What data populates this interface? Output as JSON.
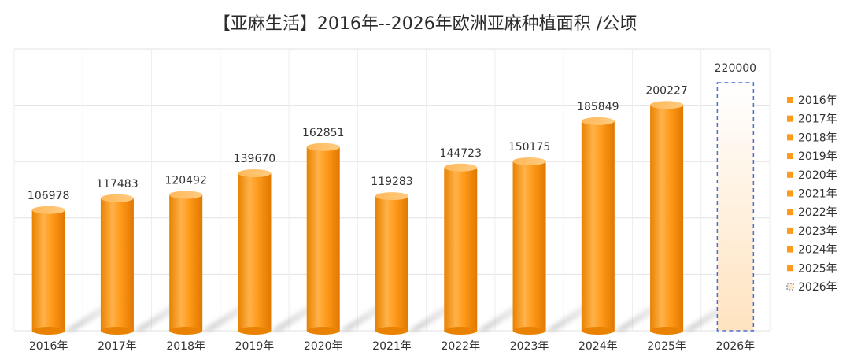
{
  "chart_data": {
    "type": "bar",
    "title": "【亚麻生活】2016年--2026年欧洲亚麻种植面积  /公顷",
    "categories": [
      "2016年",
      "2017年",
      "2018年",
      "2019年",
      "2020年",
      "2021年",
      "2022年",
      "2023年",
      "2024年",
      "2025年",
      "2026年"
    ],
    "values": [
      106978,
      117483,
      120492,
      139670,
      162851,
      119283,
      144723,
      150175,
      185849,
      200227,
      220000
    ],
    "ylim": [
      0,
      250000
    ],
    "grid": true,
    "legend_position": "right",
    "legend": [
      "2016年",
      "2017年",
      "2018年",
      "2019年",
      "2020年",
      "2021年",
      "2022年",
      "2023年",
      "2024年",
      "2025年",
      "2026年"
    ],
    "highlight_category": "2026年",
    "colors": {
      "bar": "#FF9A1A",
      "bar_light": "#FFC070",
      "bar_dark": "#E07800",
      "projection_border": "#4A6FD0",
      "grid": "#E2E2E2"
    }
  }
}
